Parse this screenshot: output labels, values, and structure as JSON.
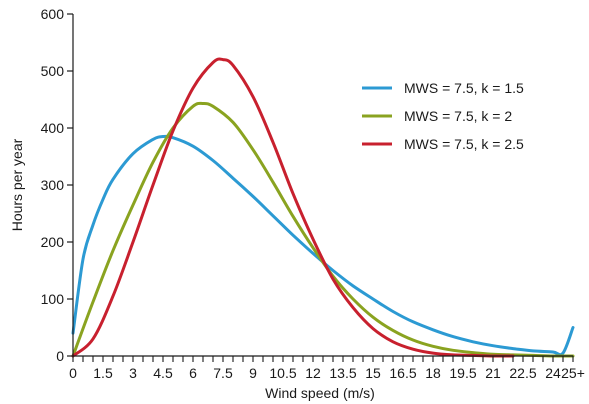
{
  "chart_data": {
    "type": "line",
    "title": "",
    "xlabel": "Wind speed (m/s)",
    "ylabel": "Hours per year",
    "xlim": [
      0,
      25
    ],
    "ylim": [
      0,
      600
    ],
    "x_tick_values": [
      0,
      1.5,
      3,
      4.5,
      6,
      7.5,
      9,
      10.5,
      12,
      13.5,
      15,
      16.5,
      18,
      19.5,
      21,
      22.5,
      24,
      25
    ],
    "x_tick_labels": [
      "0",
      "1.5",
      "3",
      "4.5",
      "6",
      "7.5",
      "9",
      "10.5",
      "12",
      "13.5",
      "15",
      "16.5",
      "18",
      "19.5",
      "21",
      "22.5",
      "24",
      "25+"
    ],
    "y_tick_values": [
      0,
      100,
      200,
      300,
      400,
      500,
      600
    ],
    "y_tick_labels": [
      "0",
      "100",
      "200",
      "300",
      "400",
      "500",
      "600"
    ],
    "x_minor_step": 0.5,
    "grid": false,
    "legend_position": "top-right",
    "series": [
      {
        "name": "MWS = 7.5, k = 1.5",
        "color": "#2c9ad3",
        "x": [
          0,
          0.5,
          1,
          1.5,
          2,
          3,
          4,
          4.5,
          5,
          6,
          7,
          8,
          9,
          10,
          11,
          12,
          13,
          14,
          15,
          16,
          17,
          18,
          19,
          20,
          21,
          22,
          23,
          24,
          24.5,
          25
        ],
        "values": [
          40,
          170,
          230,
          275,
          310,
          355,
          380,
          385,
          383,
          368,
          343,
          312,
          280,
          246,
          212,
          180,
          150,
          123,
          100,
          78,
          60,
          46,
          34,
          25,
          18,
          13,
          9,
          7,
          5,
          50
        ]
      },
      {
        "name": "MWS = 7.5, k = 2",
        "color": "#8aa320",
        "x": [
          0,
          1,
          2,
          3,
          4,
          5,
          6,
          6.5,
          7,
          8,
          9,
          10,
          11,
          12,
          13,
          14,
          15,
          16,
          17,
          18,
          19,
          20,
          21,
          22,
          23,
          24,
          25
        ],
        "values": [
          0,
          95,
          185,
          265,
          340,
          400,
          438,
          443,
          438,
          410,
          362,
          305,
          245,
          190,
          140,
          100,
          68,
          45,
          28,
          17,
          10,
          6,
          3,
          2,
          1,
          0,
          0
        ]
      },
      {
        "name": "MWS = 7.5, k = 2.5",
        "color": "#c8202e",
        "x": [
          0,
          1,
          2,
          3,
          4,
          5,
          6,
          7,
          7.5,
          8,
          9,
          10,
          11,
          12,
          13,
          14,
          15,
          16,
          17,
          18,
          19,
          20,
          21,
          22
        ],
        "values": [
          0,
          30,
          105,
          200,
          300,
          395,
          470,
          515,
          520,
          510,
          455,
          375,
          285,
          205,
          135,
          85,
          48,
          25,
          12,
          5,
          2,
          1,
          0,
          0
        ]
      }
    ]
  }
}
